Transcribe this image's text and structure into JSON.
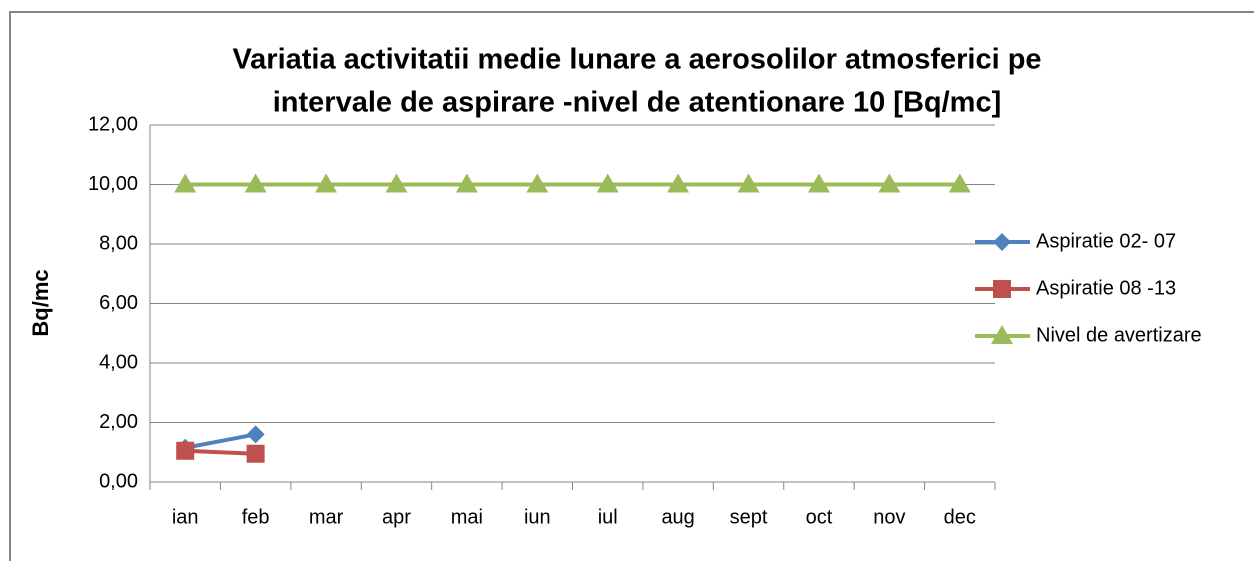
{
  "chart_data": {
    "type": "line",
    "title": [
      "Variatia activitatii medie  lunare a aerosolilor atmosferici pe",
      "intervale de aspirare -nivel de atentionare 10 [Bq/mc]"
    ],
    "y_label": "Bq/mc",
    "categories": [
      "ian",
      "feb",
      "mar",
      "apr",
      "mai",
      "iun",
      "iul",
      "aug",
      "sept",
      "oct",
      "nov",
      "dec"
    ],
    "series": [
      {
        "name": "Aspiratie 02- 07",
        "color": "#4f81bd",
        "marker": "diamond",
        "values": [
          1.15,
          1.6,
          null,
          null,
          null,
          null,
          null,
          null,
          null,
          null,
          null,
          null
        ]
      },
      {
        "name": "Aspiratie 08 -13",
        "color": "#c0504d",
        "marker": "square",
        "values": [
          1.05,
          0.95,
          null,
          null,
          null,
          null,
          null,
          null,
          null,
          null,
          null,
          null
        ]
      },
      {
        "name": "Nivel de avertizare",
        "color": "#9bbb59",
        "marker": "triangle",
        "values": [
          10,
          10,
          10,
          10,
          10,
          10,
          10,
          10,
          10,
          10,
          10,
          10
        ]
      }
    ],
    "ylim": [
      0,
      12
    ],
    "yticks": [
      {
        "value": 0,
        "label": "0,00"
      },
      {
        "value": 2,
        "label": "2,00"
      },
      {
        "value": 4,
        "label": "4,00"
      },
      {
        "value": 6,
        "label": "6,00"
      },
      {
        "value": 8,
        "label": "8,00"
      },
      {
        "value": 10,
        "label": "10,00"
      },
      {
        "value": 12,
        "label": "12,00"
      }
    ],
    "grid": true,
    "legend": "right"
  }
}
